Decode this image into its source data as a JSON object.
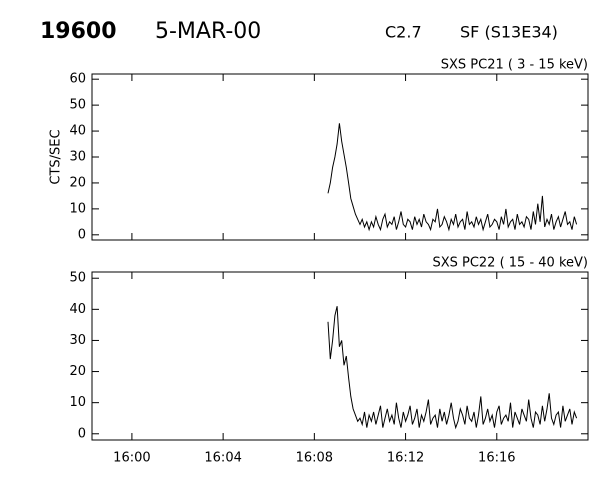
{
  "header": {
    "id": "19600",
    "date": "5-MAR-00",
    "class": "C2.7",
    "flare": "SF (S13E34)"
  },
  "chart_data": [
    {
      "type": "line",
      "title": "SXS PC21  (  3 - 15 keV)",
      "y_label": "CTS/SEC",
      "color": "#000000",
      "xlim": [
        -1.75,
        20.0
      ],
      "xticks": [
        0,
        4,
        8,
        12,
        16
      ],
      "ylim": [
        -2,
        62
      ],
      "yticks": [
        0,
        10,
        20,
        30,
        40,
        50,
        60
      ],
      "x": [
        8.6,
        8.7,
        8.8,
        8.9,
        9.0,
        9.1,
        9.2,
        9.3,
        9.4,
        9.5,
        9.6,
        9.7,
        9.8,
        9.9,
        10.0,
        10.1,
        10.2,
        10.3,
        10.4,
        10.5,
        10.6,
        10.7,
        10.8,
        10.9,
        11.0,
        11.1,
        11.2,
        11.3,
        11.4,
        11.5,
        11.6,
        11.7,
        11.8,
        11.9,
        12.0,
        12.1,
        12.2,
        12.3,
        12.4,
        12.5,
        12.6,
        12.7,
        12.8,
        12.9,
        13.0,
        13.1,
        13.2,
        13.3,
        13.4,
        13.5,
        13.6,
        13.7,
        13.8,
        13.9,
        14.0,
        14.1,
        14.2,
        14.3,
        14.4,
        14.5,
        14.6,
        14.7,
        14.8,
        14.9,
        15.0,
        15.1,
        15.2,
        15.3,
        15.4,
        15.5,
        15.6,
        15.7,
        15.8,
        15.9,
        16.0,
        16.1,
        16.2,
        16.3,
        16.4,
        16.5,
        16.6,
        16.7,
        16.8,
        16.9,
        17.0,
        17.1,
        17.2,
        17.3,
        17.4,
        17.5,
        17.6,
        17.7,
        17.8,
        17.9,
        18.0,
        18.1,
        18.2,
        18.3,
        18.4,
        18.5,
        18.6,
        18.7,
        18.8,
        18.9,
        19.0,
        19.1,
        19.2,
        19.3,
        19.4,
        19.5
      ],
      "values": [
        16,
        20,
        26,
        30,
        35,
        43,
        36,
        31,
        26,
        20,
        14,
        11,
        8,
        6,
        4,
        6,
        3,
        5,
        2,
        5,
        3,
        7,
        4,
        2,
        6,
        8,
        3,
        5,
        4,
        7,
        2,
        5,
        9,
        4,
        3,
        6,
        5,
        2,
        7,
        4,
        6,
        3,
        8,
        5,
        4,
        2,
        6,
        5,
        10,
        3,
        4,
        7,
        5,
        2,
        6,
        4,
        8,
        3,
        5,
        6,
        2,
        9,
        4,
        5,
        3,
        7,
        4,
        6,
        2,
        5,
        8,
        3,
        4,
        6,
        5,
        2,
        7,
        4,
        10,
        3,
        5,
        6,
        2,
        8,
        4,
        5,
        3,
        7,
        6,
        2,
        9,
        4,
        12,
        5,
        15,
        3,
        6,
        4,
        8,
        2,
        5,
        7,
        3,
        6,
        9,
        4,
        5,
        2,
        7,
        4
      ]
    },
    {
      "type": "line",
      "title": "SXS PC22  ( 15 - 40 keV)",
      "color": "#000000",
      "xlim": [
        -1.75,
        20.0
      ],
      "xticks": [
        {
          "value": 0,
          "label": "16:00"
        },
        {
          "value": 4,
          "label": "16:04"
        },
        {
          "value": 8,
          "label": "16:08"
        },
        {
          "value": 12,
          "label": "16:12"
        },
        {
          "value": 16,
          "label": "16:16"
        }
      ],
      "ylim": [
        -2,
        52
      ],
      "yticks": [
        0,
        10,
        20,
        30,
        40,
        50
      ],
      "x": [
        8.6,
        8.7,
        8.8,
        8.9,
        9.0,
        9.1,
        9.2,
        9.3,
        9.4,
        9.5,
        9.6,
        9.7,
        9.8,
        9.9,
        10.0,
        10.1,
        10.2,
        10.3,
        10.4,
        10.5,
        10.6,
        10.7,
        10.8,
        10.9,
        11.0,
        11.1,
        11.2,
        11.3,
        11.4,
        11.5,
        11.6,
        11.7,
        11.8,
        11.9,
        12.0,
        12.1,
        12.2,
        12.3,
        12.4,
        12.5,
        12.6,
        12.7,
        12.8,
        12.9,
        13.0,
        13.1,
        13.2,
        13.3,
        13.4,
        13.5,
        13.6,
        13.7,
        13.8,
        13.9,
        14.0,
        14.1,
        14.2,
        14.3,
        14.4,
        14.5,
        14.6,
        14.7,
        14.8,
        14.9,
        15.0,
        15.1,
        15.2,
        15.3,
        15.4,
        15.5,
        15.6,
        15.7,
        15.8,
        15.9,
        16.0,
        16.1,
        16.2,
        16.3,
        16.4,
        16.5,
        16.6,
        16.7,
        16.8,
        16.9,
        17.0,
        17.1,
        17.2,
        17.3,
        17.4,
        17.5,
        17.6,
        17.7,
        17.8,
        17.9,
        18.0,
        18.1,
        18.2,
        18.3,
        18.4,
        18.5,
        18.6,
        18.7,
        18.8,
        18.9,
        19.0,
        19.1,
        19.2,
        19.3,
        19.4,
        19.5
      ],
      "values": [
        36,
        24,
        30,
        38,
        41,
        28,
        30,
        22,
        25,
        18,
        12,
        8,
        6,
        4,
        5,
        3,
        7,
        2,
        6,
        4,
        7,
        3,
        6,
        9,
        2,
        5,
        8,
        4,
        6,
        3,
        10,
        5,
        2,
        7,
        4,
        6,
        9,
        3,
        5,
        8,
        2,
        6,
        4,
        7,
        11,
        3,
        5,
        6,
        2,
        8,
        4,
        7,
        3,
        6,
        10,
        5,
        2,
        4,
        8,
        6,
        3,
        9,
        5,
        4,
        7,
        2,
        6,
        12,
        3,
        5,
        8,
        4,
        6,
        2,
        7,
        9,
        3,
        5,
        6,
        4,
        10,
        2,
        7,
        5,
        3,
        8,
        6,
        4,
        11,
        5,
        2,
        7,
        6,
        3,
        9,
        4,
        8,
        13,
        5,
        3,
        6,
        7,
        2,
        9,
        4,
        6,
        8,
        3,
        7,
        5
      ]
    }
  ]
}
